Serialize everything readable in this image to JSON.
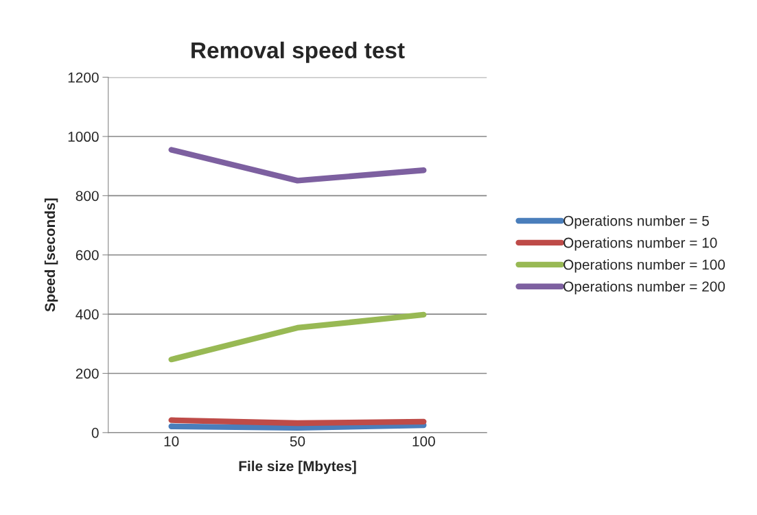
{
  "chart_data": {
    "type": "line",
    "title": "Removal speed test",
    "xlabel": "File size [Mbytes]",
    "ylabel": "Speed [seconds]",
    "categories": [
      "10",
      "50",
      "100"
    ],
    "series": [
      {
        "name": "Operations number = 5",
        "color": "#4a7ebb",
        "values": [
          21,
          16,
          25
        ]
      },
      {
        "name": "Operations number = 10",
        "color": "#be4b48",
        "values": [
          42,
          32,
          37
        ]
      },
      {
        "name": "Operations number = 100",
        "color": "#98b954",
        "values": [
          247,
          354,
          398
        ]
      },
      {
        "name": "Operations number = 200",
        "color": "#7d60a0",
        "values": [
          955,
          851,
          886
        ]
      }
    ],
    "ylim": [
      0,
      1200
    ],
    "yticks": [
      0,
      200,
      400,
      600,
      800,
      1000,
      1200
    ],
    "grid": "y",
    "legend": "right",
    "marker": "none",
    "line_style": "solid"
  }
}
